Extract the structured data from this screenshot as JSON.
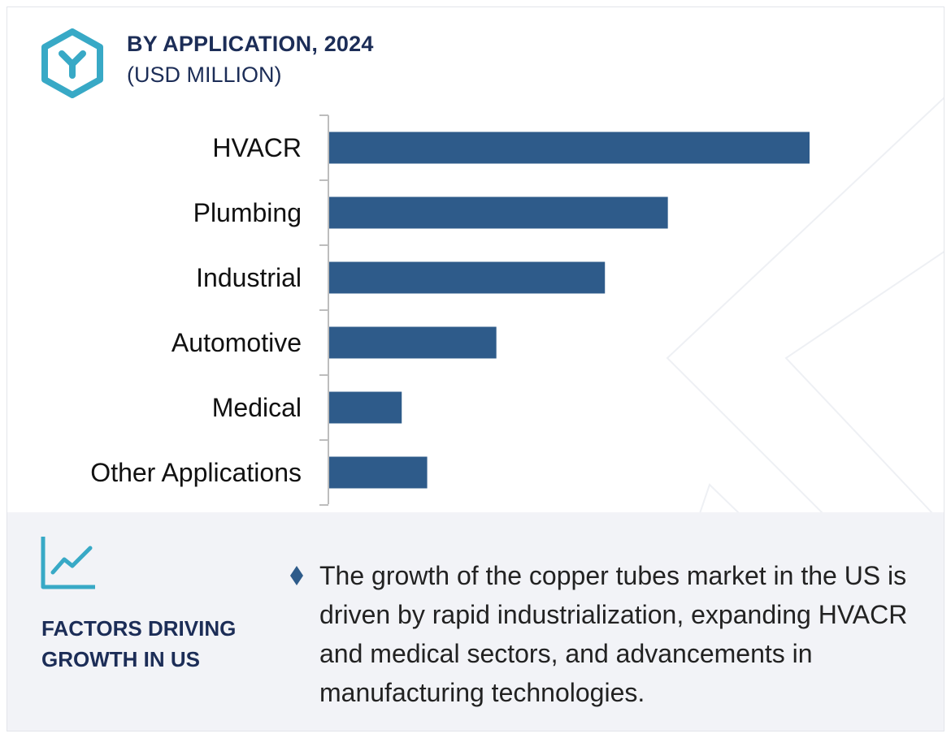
{
  "header": {
    "title": "BY APPLICATION, 2024",
    "subtitle": "(USD MILLION)"
  },
  "colors": {
    "bar": "#2e5b8a",
    "accent_teal": "#38a9c6",
    "heading_navy": "#1c2d57",
    "panel_bg": "#f2f3f7"
  },
  "chart_data": {
    "type": "bar",
    "orientation": "horizontal",
    "categories": [
      "HVACR",
      "Plumbing",
      "Industrial",
      "Automotive",
      "Medical",
      "Other Applications"
    ],
    "values": [
      100,
      70.5,
      57.4,
      34.8,
      15.1,
      20.4
    ],
    "value_axis": "not shown",
    "grid": false,
    "legend": "none"
  },
  "factors": {
    "icon": "line-chart-icon",
    "title_line1": "FACTORS DRIVING",
    "title_line2": "GROWTH IN US",
    "bullet_icon": "diamond-bullet-icon",
    "bullet_text": "The growth of the copper tubes market in the US is driven by rapid industrialization, expanding HVACR and medical sectors, and advancements in manufacturing technologies."
  }
}
